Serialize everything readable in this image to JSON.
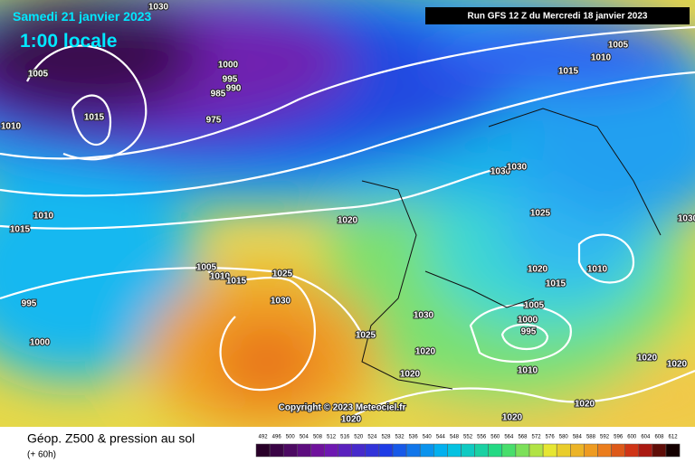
{
  "header": {
    "date": "Samedi 21 janvier 2023",
    "time": "1:00 locale",
    "run": "Run GFS 12 Z du Mercredi 18 janvier 2023"
  },
  "isobar_labels": [
    1030,
    1005,
    1000,
    995,
    990,
    985,
    975,
    1015,
    1010,
    1010,
    1015,
    1020,
    1005,
    1010,
    1015,
    1025,
    1030,
    995,
    1000,
    1030,
    1025,
    1020,
    1020,
    1010,
    1000,
    995,
    1005,
    1015,
    1020,
    1010,
    1025,
    1030,
    1030,
    1005,
    1010,
    1015,
    1020,
    1020,
    1020,
    1020,
    1020,
    1030
  ],
  "copyright": "Copyright © 2023 Meteociel.fr",
  "footer": {
    "title": "Géop. Z500 & pression au sol",
    "lead": "(+ 60h)"
  },
  "scale": [
    492,
    496,
    500,
    504,
    508,
    512,
    516,
    520,
    524,
    528,
    532,
    536,
    540,
    544,
    548,
    552,
    556,
    560,
    564,
    568,
    572,
    576,
    580,
    584,
    588,
    592,
    596,
    600,
    604,
    608,
    612
  ]
}
